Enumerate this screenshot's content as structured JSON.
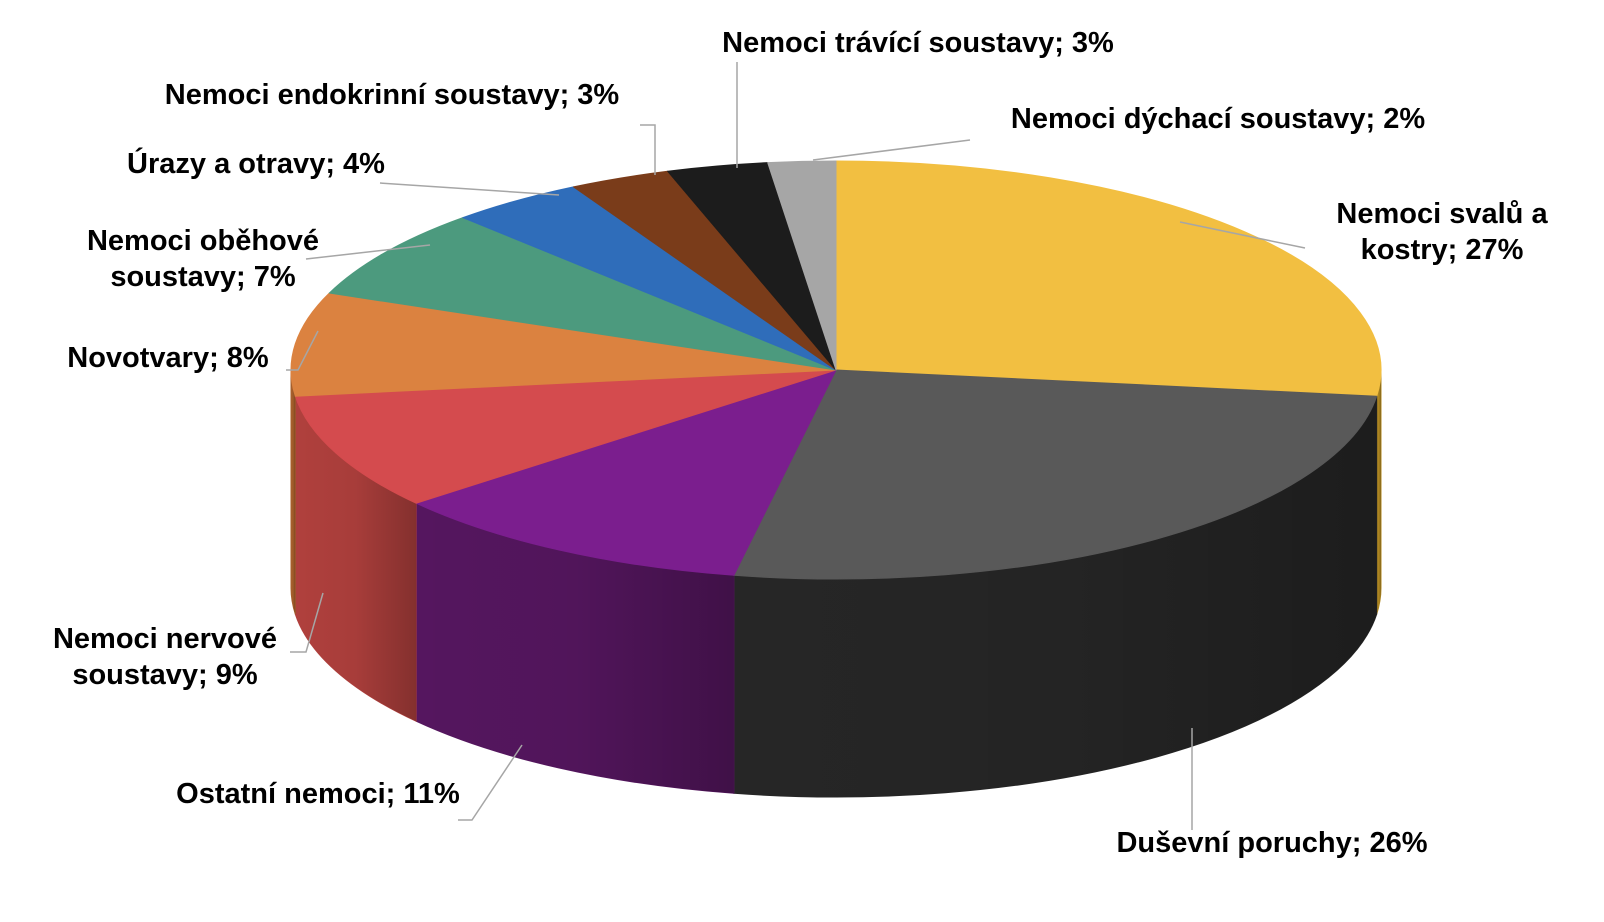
{
  "chart_data": {
    "type": "pie",
    "style": "3d",
    "start_angle_deg": 0,
    "direction": "clockwise",
    "slices": [
      {
        "label": "Nemoci svalů a kostry",
        "value": 27,
        "display": "Nemoci svalů a kostry; 27%",
        "color": "#F2BF41",
        "side_color": "#B38A22"
      },
      {
        "label": "Duševní poruchy",
        "value": 26,
        "display": "Duševní poruchy; 26%",
        "color": "#595959",
        "side_color": "#262626"
      },
      {
        "label": "Ostatní nemoci",
        "value": 11,
        "display": "Ostatní nemoci; 11%",
        "color": "#7B1E8E",
        "side_color": "#55165F"
      },
      {
        "label": "Nemoci nervové soustavy",
        "value": 9,
        "display": "Nemoci nervové soustavy; 9%",
        "color": "#D44B4E",
        "side_color": "#B0403D"
      },
      {
        "label": "Novotvary",
        "value": 8,
        "display": "Novotvary; 8%",
        "color": "#DB8240",
        "side_color": "#A8602C"
      },
      {
        "label": "Nemoci oběhové soustavy",
        "value": 7,
        "display": "Nemoci oběhové soustavy; 7%",
        "color": "#4C9A7E",
        "side_color": "#356E59"
      },
      {
        "label": "Úrazy a otravy",
        "value": 4,
        "display": "Úrazy a otravy; 4%",
        "color": "#2F6DBA",
        "side_color": "#204D85"
      },
      {
        "label": "Nemoci endokrinní soustavy",
        "value": 3,
        "display": "Nemoci endokrinní soustavy; 3%",
        "color": "#7A3C1A",
        "side_color": "#532710"
      },
      {
        "label": "Nemoci trávící soustavy",
        "value": 3,
        "display": "Nemoci trávící soustavy; 3%",
        "color": "#1C1C1C",
        "side_color": "#0A0A0A"
      },
      {
        "label": "Nemoci dýchací soustavy",
        "value": 2,
        "display": "Nemoci dýchací soustavy; 2%",
        "color": "#A6A6A6",
        "side_color": "#7A7A7A"
      }
    ],
    "label_lines": [
      [
        "Nemoci svalů a",
        "kostry; 27%"
      ],
      [
        "Duševní poruchy; 26%"
      ],
      [
        "Ostatní nemoci; 11%"
      ],
      [
        "Nemoci nervové",
        "soustavy; 9%"
      ],
      [
        "Novotvary; 8%"
      ],
      [
        "Nemoci oběhové",
        "soustavy; 7%"
      ],
      [
        "Úrazy a otravy; 4%"
      ],
      [
        "Nemoci endokrinní soustavy; 3%"
      ],
      [
        "Nemoci trávící soustavy; 3%"
      ],
      [
        "Nemoci dýchací soustavy; 2%"
      ]
    ],
    "legend": "none",
    "title": ""
  }
}
